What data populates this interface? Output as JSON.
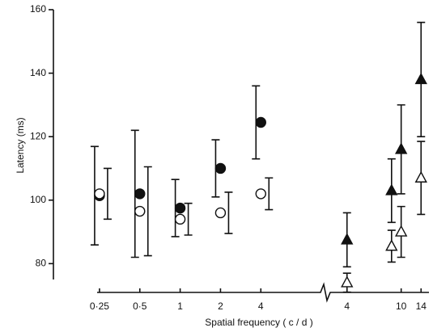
{
  "chart_data": [
    {
      "type": "errorbar",
      "ylabel": "Latency (ms)",
      "xlabel": "Spatial frequency ( c / d )",
      "xscale": "log",
      "xlim": [
        0.24,
        11
      ],
      "ylim": [
        75,
        160
      ],
      "xticks": [
        {
          "value": 0.25,
          "label": "0·25"
        },
        {
          "value": 0.5,
          "label": "0·5"
        },
        1,
        2,
        4
      ],
      "yticks": [
        80,
        100,
        120,
        140,
        160
      ],
      "x": [
        0.25,
        0.5,
        1,
        2,
        4
      ],
      "series": [
        {
          "marker": "circle",
          "color": "#111111",
          "filled": true,
          "values": [
            101.4,
            102,
            97.5,
            110,
            124.5
          ],
          "errors": [
            15.5,
            20,
            9,
            9,
            11.5
          ]
        },
        {
          "marker": "circle",
          "color": "#111111",
          "filled": false,
          "values": [
            102,
            96.5,
            94,
            96,
            102
          ],
          "errors": [
            8,
            14,
            5,
            6.5,
            5
          ]
        }
      ]
    },
    {
      "type": "errorbar",
      "xscale": "log",
      "xlim": [
        3.5,
        16
      ],
      "ylim": [
        75,
        160
      ],
      "xticks": [
        4,
        10,
        14
      ],
      "x": [
        4,
        8.5,
        10,
        14
      ],
      "series": [
        {
          "marker": "triangle",
          "color": "#111111",
          "filled": true,
          "values": [
            87.5,
            103,
            116,
            138
          ],
          "errors": [
            8.5,
            10,
            14,
            18
          ]
        },
        {
          "marker": "triangle",
          "color": "#111111",
          "filled": false,
          "values": [
            74,
            85.5,
            90,
            107
          ],
          "errors": [
            3,
            5,
            8,
            11.5
          ]
        }
      ]
    }
  ]
}
